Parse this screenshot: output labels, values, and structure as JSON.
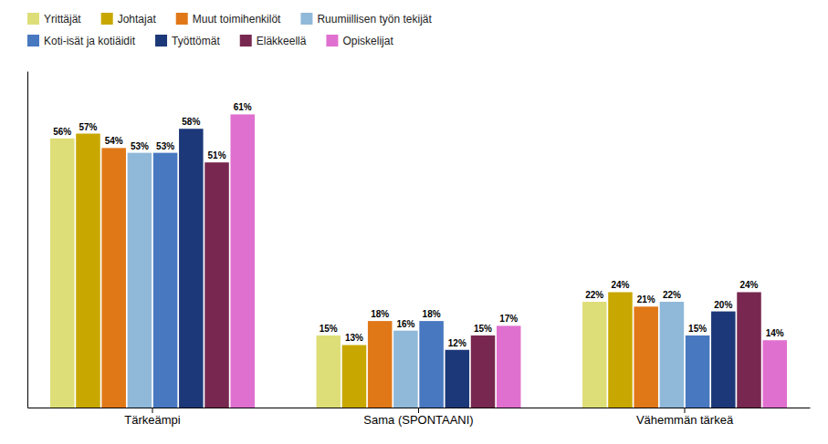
{
  "chart_data": {
    "type": "bar",
    "categories": [
      "Tärkeämpi",
      "Sama (SPONTAANI)",
      "Vähemmän tärkeä"
    ],
    "series": [
      {
        "name": "Yrittäjät",
        "color": "#DEDE78",
        "values": [
          56,
          15,
          22
        ],
        "value_labels": [
          "56%",
          "15%",
          "22%"
        ]
      },
      {
        "name": "Johtajat",
        "color": "#C8A800",
        "values": [
          57,
          13,
          24
        ],
        "value_labels": [
          "57%",
          "13%",
          "24%"
        ]
      },
      {
        "name": "Muut toimihenkilöt",
        "color": "#E07818",
        "values": [
          54,
          18,
          21
        ],
        "value_labels": [
          "54%",
          "18%",
          "21%"
        ]
      },
      {
        "name": "Ruumiillisen työn tekijät",
        "color": "#90B8D8",
        "values": [
          53,
          16,
          22
        ],
        "value_labels": [
          "53%",
          "16%",
          "22%"
        ]
      },
      {
        "name": "Koti-isät ja kotiäidit",
        "color": "#4878C0",
        "values": [
          53,
          18,
          15
        ],
        "value_labels": [
          "53%",
          "18%",
          "15%"
        ]
      },
      {
        "name": "Työttömät",
        "color": "#1C3878",
        "values": [
          58,
          12,
          20
        ],
        "value_labels": [
          "58%",
          "12%",
          "20%"
        ]
      },
      {
        "name": "Eläkkeellä",
        "color": "#782850",
        "values": [
          51,
          15,
          24
        ],
        "value_labels": [
          "51%",
          "15%",
          "24%"
        ]
      },
      {
        "name": "Opiskelijat",
        "color": "#E070D0",
        "values": [
          61,
          17,
          14
        ],
        "value_labels": [
          "61%",
          "17%",
          "14%"
        ]
      }
    ],
    "ylim": [
      0,
      70
    ],
    "data_labels": true,
    "tick_labels": "x",
    "grid": false,
    "legend": "upper left"
  }
}
